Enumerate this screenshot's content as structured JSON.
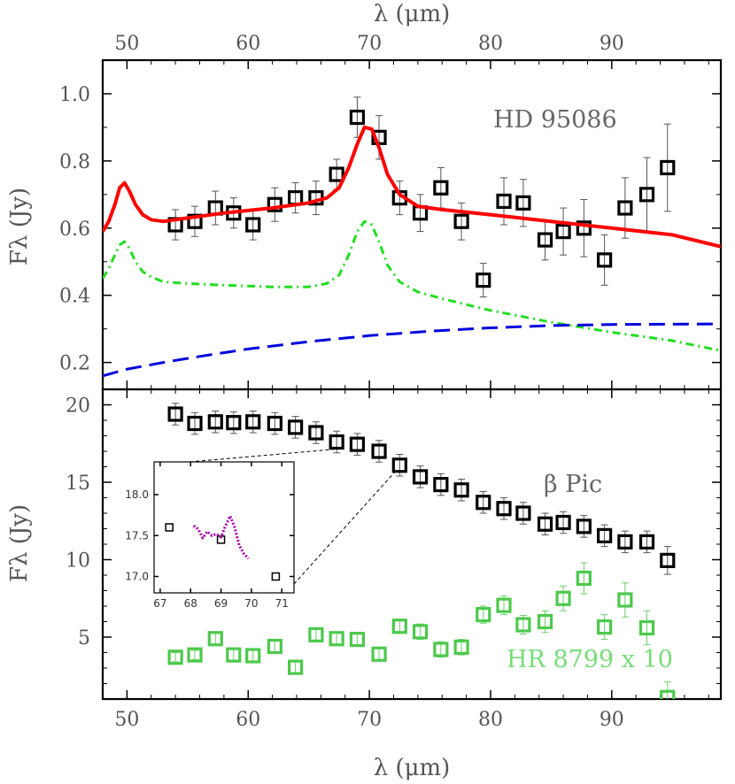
{
  "chart_data": [
    {
      "type": "scatter",
      "panel": "top",
      "xlabel": "λ (μm)",
      "ylabel": "Fλ (Jy)",
      "xlim": [
        48,
        99
      ],
      "ylim": [
        0.12,
        1.1
      ],
      "x_ticks": [
        "50",
        "60",
        "70",
        "80",
        "90"
      ],
      "y_ticks": [
        "0.2",
        "0.4",
        "0.6",
        "0.8",
        "1.0"
      ],
      "annotation": "HD 95086",
      "series": [
        {
          "kind": "points",
          "color": "#000000",
          "x": [
            54.0,
            55.6,
            57.3,
            58.8,
            60.4,
            62.2,
            63.9,
            65.6,
            67.3,
            69.0,
            70.8,
            72.5,
            74.2,
            75.9,
            77.6,
            79.4,
            81.1,
            82.7,
            84.5,
            86.0,
            87.7,
            89.4,
            91.1,
            92.9,
            94.6
          ],
          "y": [
            0.61,
            0.62,
            0.66,
            0.645,
            0.61,
            0.67,
            0.69,
            0.69,
            0.76,
            0.93,
            0.87,
            0.69,
            0.645,
            0.72,
            0.62,
            0.445,
            0.68,
            0.675,
            0.565,
            0.59,
            0.6,
            0.505,
            0.66,
            0.7,
            0.78
          ],
          "yerr": [
            0.045,
            0.045,
            0.05,
            0.045,
            0.045,
            0.05,
            0.045,
            0.05,
            0.045,
            0.06,
            0.065,
            0.05,
            0.055,
            0.06,
            0.055,
            0.05,
            0.07,
            0.07,
            0.06,
            0.07,
            0.085,
            0.075,
            0.09,
            0.11,
            0.13
          ]
        },
        {
          "kind": "line",
          "style": "solid",
          "color": "#ff0000",
          "x": [
            48,
            48.5,
            49,
            49.4,
            49.8,
            50.2,
            50.7,
            51.3,
            52,
            53,
            55,
            58,
            62,
            65,
            66.5,
            67.5,
            68.3,
            69,
            69.6,
            70.2,
            70.8,
            71.5,
            72.5,
            74,
            76,
            80,
            85,
            90,
            95,
            99
          ],
          "y": [
            0.59,
            0.62,
            0.67,
            0.72,
            0.735,
            0.71,
            0.67,
            0.64,
            0.625,
            0.62,
            0.63,
            0.645,
            0.66,
            0.675,
            0.69,
            0.72,
            0.78,
            0.85,
            0.9,
            0.895,
            0.84,
            0.76,
            0.7,
            0.665,
            0.655,
            0.64,
            0.62,
            0.6,
            0.58,
            0.545
          ]
        },
        {
          "kind": "line",
          "style": "dash-dot",
          "color": "#22dd22",
          "x": [
            48,
            48.5,
            49,
            49.4,
            49.8,
            50.2,
            50.7,
            51.3,
            52,
            53,
            55,
            58,
            62,
            65,
            66.5,
            67.5,
            68.3,
            69,
            69.6,
            70.2,
            70.8,
            71.5,
            72.5,
            74,
            76,
            80,
            85,
            90,
            95,
            99
          ],
          "y": [
            0.45,
            0.48,
            0.52,
            0.55,
            0.56,
            0.54,
            0.5,
            0.47,
            0.455,
            0.44,
            0.435,
            0.43,
            0.425,
            0.425,
            0.435,
            0.46,
            0.52,
            0.59,
            0.62,
            0.61,
            0.56,
            0.49,
            0.44,
            0.41,
            0.39,
            0.355,
            0.32,
            0.29,
            0.265,
            0.235
          ]
        },
        {
          "kind": "line",
          "style": "dashed",
          "color": "#0000dd",
          "x": [
            48,
            50,
            53,
            56,
            60,
            65,
            70,
            75,
            80,
            85,
            90,
            95,
            99
          ],
          "y": [
            0.16,
            0.18,
            0.2,
            0.218,
            0.24,
            0.262,
            0.28,
            0.293,
            0.303,
            0.31,
            0.313,
            0.314,
            0.315
          ]
        }
      ]
    },
    {
      "type": "scatter",
      "panel": "bottom",
      "xlabel": "λ (μm)",
      "ylabel": "Fλ (Jy)",
      "xlim": [
        48,
        99
      ],
      "ylim": [
        1,
        21
      ],
      "x_ticks": [
        "50",
        "60",
        "70",
        "80",
        "90"
      ],
      "y_ticks": [
        "5",
        "10",
        "15",
        "20"
      ],
      "annotations": [
        "β Pic",
        "HR 8799 x 10"
      ],
      "series": [
        {
          "kind": "points",
          "color": "#000000",
          "x": [
            54.0,
            55.6,
            57.3,
            58.8,
            60.4,
            62.2,
            63.9,
            65.6,
            67.3,
            69.0,
            70.8,
            72.5,
            74.2,
            75.9,
            77.6,
            79.4,
            81.1,
            82.7,
            84.5,
            86.0,
            87.7,
            89.4,
            91.1,
            92.9,
            94.6
          ],
          "y": [
            19.4,
            18.8,
            18.9,
            18.85,
            18.9,
            18.8,
            18.55,
            18.2,
            17.6,
            17.45,
            17.0,
            16.1,
            15.35,
            14.85,
            14.5,
            13.7,
            13.3,
            13.0,
            12.3,
            12.4,
            12.15,
            11.55,
            11.15,
            11.15,
            9.95
          ],
          "yerr": [
            0.7,
            0.7,
            0.7,
            0.7,
            0.7,
            0.7,
            0.7,
            0.7,
            0.7,
            0.7,
            0.7,
            0.7,
            0.7,
            0.7,
            0.7,
            0.7,
            0.7,
            0.7,
            0.7,
            0.7,
            0.7,
            0.7,
            0.7,
            0.7,
            0.9
          ]
        },
        {
          "kind": "points",
          "color": "#4cc94c",
          "x": [
            54.0,
            55.6,
            57.3,
            58.8,
            60.4,
            62.2,
            63.9,
            65.6,
            67.3,
            69.0,
            70.8,
            72.5,
            74.2,
            75.9,
            77.6,
            79.4,
            81.1,
            82.7,
            84.5,
            86.0,
            87.7,
            89.4,
            91.1,
            92.9,
            94.6
          ],
          "y": [
            3.7,
            3.85,
            4.9,
            3.85,
            3.8,
            4.4,
            3.05,
            5.15,
            4.9,
            4.85,
            3.9,
            5.7,
            5.35,
            4.2,
            4.35,
            6.45,
            7.05,
            5.8,
            6.0,
            7.5,
            8.8,
            5.65,
            7.4,
            5.6,
            1.1
          ],
          "yerr": [
            0.3,
            0.3,
            0.35,
            0.35,
            0.35,
            0.4,
            0.4,
            0.4,
            0.4,
            0.4,
            0.45,
            0.45,
            0.5,
            0.5,
            0.5,
            0.55,
            0.6,
            0.6,
            0.7,
            0.8,
            1.0,
            0.8,
            1.1,
            1.1,
            1.0
          ]
        }
      ]
    },
    {
      "type": "scatter",
      "panel": "inset",
      "xlim": [
        66.8,
        71.4
      ],
      "ylim": [
        16.8,
        18.4
      ],
      "x_ticks": [
        "67",
        "68",
        "69",
        "70",
        "71"
      ],
      "y_ticks": [
        "17.0",
        "17.5",
        "18.0"
      ],
      "series": [
        {
          "kind": "points",
          "color": "#000000",
          "x": [
            67.3,
            69.0,
            70.8
          ],
          "y": [
            17.6,
            17.45,
            17.0
          ]
        },
        {
          "kind": "line",
          "style": "dotted",
          "color": "#aa00aa",
          "x": [
            68.1,
            68.25,
            68.4,
            68.55,
            68.7,
            68.85,
            69.0,
            69.15,
            69.3,
            69.45,
            69.6,
            69.75,
            69.9
          ],
          "y": [
            17.62,
            17.58,
            17.47,
            17.55,
            17.5,
            17.52,
            17.48,
            17.62,
            17.74,
            17.6,
            17.38,
            17.28,
            17.22
          ]
        }
      ]
    }
  ]
}
